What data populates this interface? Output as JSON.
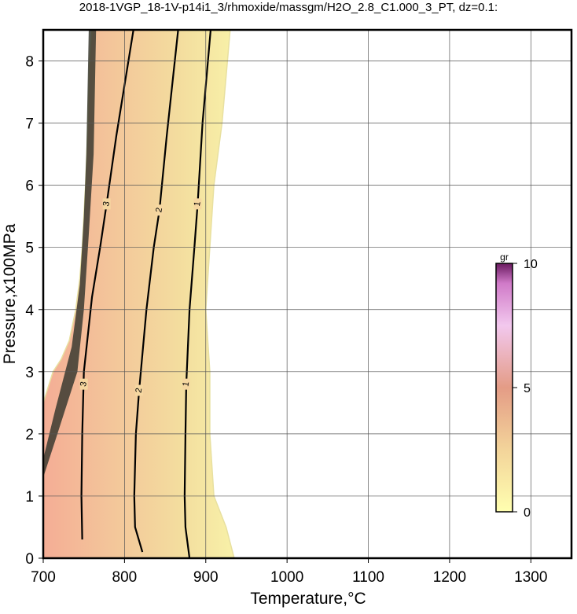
{
  "chart_data": {
    "type": "contour",
    "title": "2018-1VGP_18-1V-p14i1_3/rhmoxide/massgm/H2O_2.8_C1.000_3_PT, dz=0.1:",
    "x_label": "Temperature,°C",
    "y_label": "Pressure,x100MPa",
    "xlim": [
      700,
      1350
    ],
    "ylim": [
      0,
      8.5
    ],
    "xticks": [
      700,
      800,
      900,
      1000,
      1100,
      1200,
      1300
    ],
    "yticks": [
      0,
      1,
      2,
      3,
      4,
      5,
      6,
      7,
      8
    ],
    "grid": true,
    "field_boundary": {
      "x": [
        700,
        700,
        712,
        722,
        732,
        740,
        745,
        748,
        752,
        755,
        757,
        760,
        930,
        920,
        910,
        905,
        900,
        905,
        905,
        910,
        925,
        935
      ],
      "y": [
        0,
        2.5,
        3.0,
        3.2,
        3.5,
        4.0,
        4.5,
        5.0,
        6.0,
        7.0,
        8.0,
        8.5,
        8.5,
        7.0,
        6.0,
        5.0,
        4.0,
        3.0,
        2.0,
        1.0,
        0.5,
        0
      ]
    },
    "contours": [
      {
        "level": 3,
        "label_at": [
          [
            750,
            2.8
          ],
          [
            778,
            5.7
          ]
        ],
        "x": [
          748,
          747,
          748,
          750,
          760,
          770,
          778,
          790,
          811
        ],
        "y": [
          0.3,
          1,
          2,
          3,
          4.2,
          5,
          5.7,
          6.8,
          8.5
        ]
      },
      {
        "level": 2,
        "label_at": [
          [
            818,
            2.7
          ],
          [
            843,
            5.6
          ]
        ],
        "x": [
          822,
          813,
          812,
          814,
          818,
          827,
          836,
          843,
          852,
          866
        ],
        "y": [
          0.1,
          0.5,
          1,
          2,
          2.7,
          4,
          5,
          5.6,
          6.8,
          8.5
        ]
      },
      {
        "level": 1,
        "label_at": [
          [
            876,
            2.8
          ],
          [
            890,
            5.7
          ]
        ],
        "x": [
          880,
          875,
          874,
          875,
          876,
          880,
          886,
          890,
          896,
          906
        ],
        "y": [
          0,
          0.5,
          1,
          2,
          2.8,
          4,
          5,
          5.7,
          7,
          8.5
        ]
      }
    ],
    "colorbar": {
      "label": "gr",
      "clim": [
        0,
        10
      ],
      "ticks": [
        0,
        5,
        10
      ]
    }
  }
}
